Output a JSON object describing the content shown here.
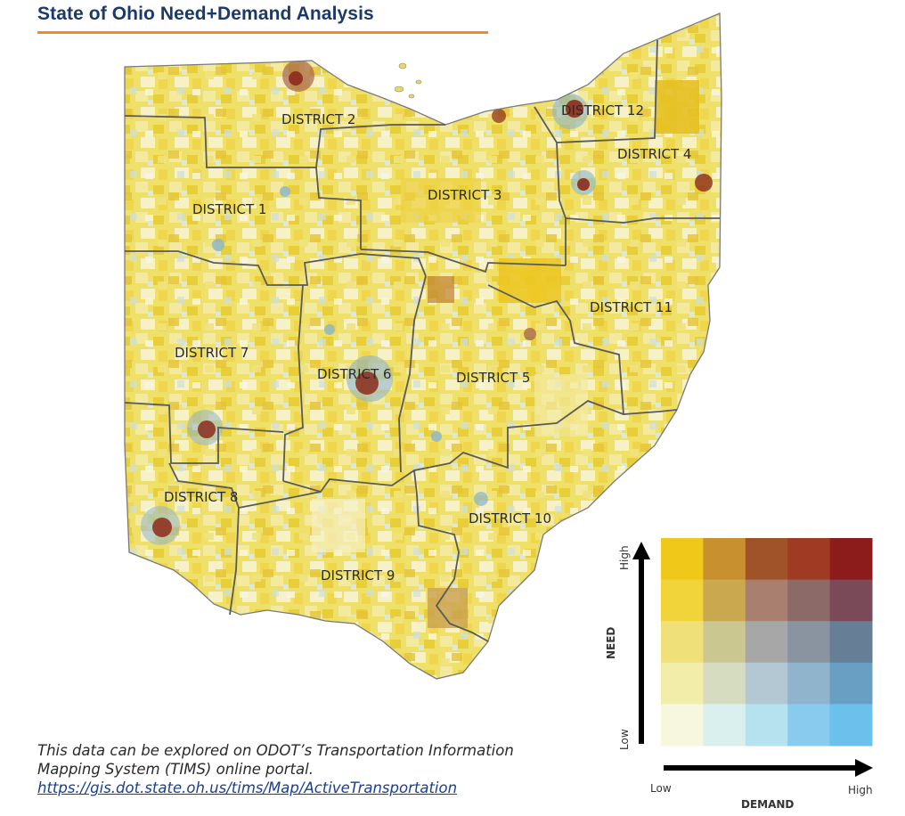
{
  "header": {
    "title": "State of Ohio Need+Demand Analysis"
  },
  "map": {
    "districts": [
      "DISTRICT 1",
      "DISTRICT 2",
      "DISTRICT 3",
      "DISTRICT 4",
      "DISTRICT 5",
      "DISTRICT 6",
      "DISTRICT 7",
      "DISTRICT 8",
      "DISTRICT 9",
      "DISTRICT 10",
      "DISTRICT 11",
      "DISTRICT 12"
    ]
  },
  "legend": {
    "y_axis_label": "NEED",
    "x_axis_label": "DEMAND",
    "y_low": "Low",
    "y_high": "High",
    "x_low": "Low",
    "x_high": "High",
    "colors_top_to_bottom": [
      [
        "#f0c81a",
        "#c99030",
        "#a05228",
        "#a03a22",
        "#8c1c1c"
      ],
      [
        "#f0d43a",
        "#c9a850",
        "#a98070",
        "#8c6a68",
        "#7a4a58"
      ],
      [
        "#f0e07a",
        "#cac890",
        "#a7a7a7",
        "#8a93a0",
        "#667e96"
      ],
      [
        "#f3edaa",
        "#d5dcc0",
        "#b3c8d2",
        "#8fb4cc",
        "#6a9fc4"
      ],
      [
        "#f7f7e0",
        "#daf0ee",
        "#b6e2f0",
        "#88cbee",
        "#6cc0ec"
      ]
    ]
  },
  "caption": {
    "line1": "This data can be explored on ODOT’s Transportation Information",
    "line2": "Mapping System (TIMS) online portal.",
    "link": "https://gis.dot.state.oh.us/tims/Map/ActiveTransportation"
  }
}
